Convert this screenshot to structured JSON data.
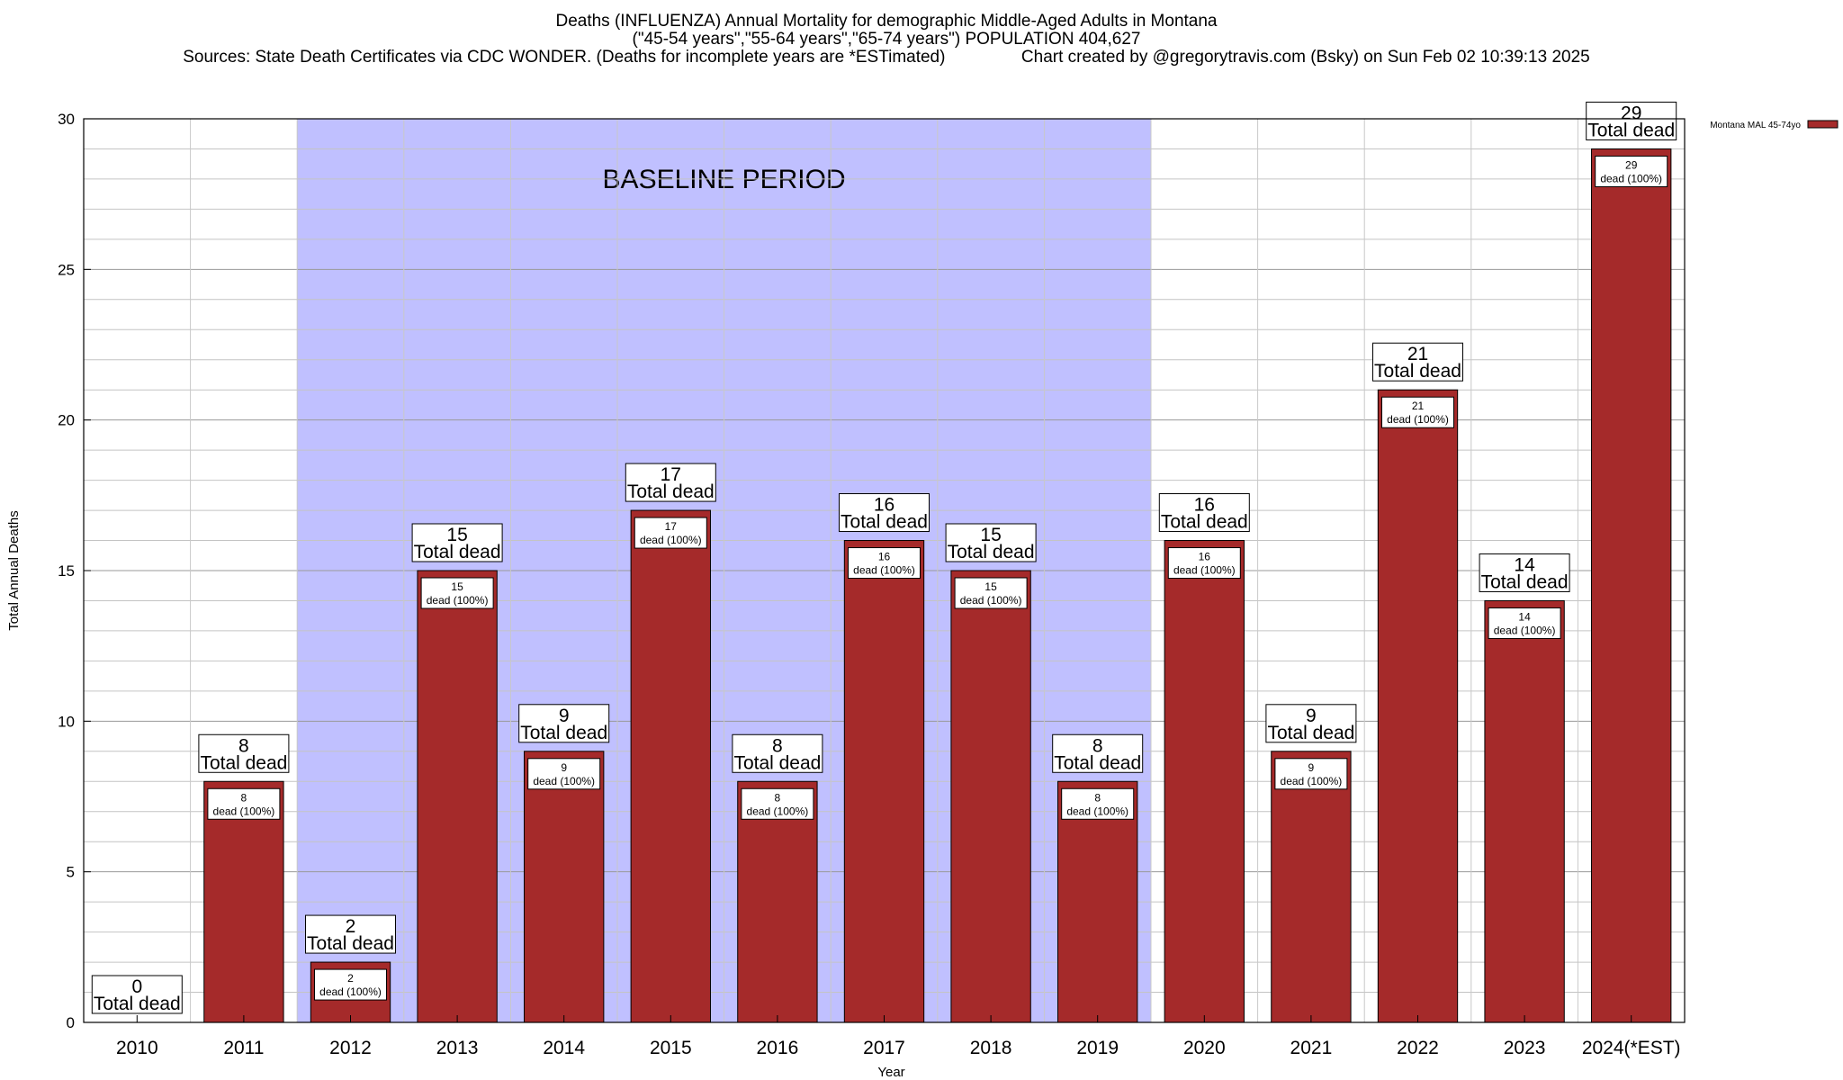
{
  "title": {
    "line1": "Deaths (INFLUENZA) Annual Mortality for demographic Middle-Aged Adults in Montana",
    "line2": "(\"45-54 years\",\"55-64 years\",\"65-74 years\") POPULATION 404,627",
    "line3": "Sources: State Death Certificates via CDC WONDER. (Deaths for incomplete years are *ESTimated)                Chart created by @gregorytravis.com (Bsky) on Sun Feb 02 10:39:13 2025"
  },
  "chart_data": {
    "type": "bar",
    "title": "Deaths (INFLUENZA) Annual Mortality for demographic Middle-Aged Adults in Montana",
    "xlabel": "Year",
    "ylabel": "Total Annual Deaths",
    "categories": [
      "2010",
      "2011",
      "2012",
      "2013",
      "2014",
      "2015",
      "2016",
      "2017",
      "2018",
      "2019",
      "2020",
      "2021",
      "2022",
      "2023",
      "2024(*EST)"
    ],
    "series": [
      {
        "name": "Montana MAL 45-74yo",
        "color": "#a52a2a",
        "values": [
          0,
          8,
          2,
          15,
          9,
          17,
          8,
          16,
          15,
          8,
          16,
          9,
          21,
          14,
          29
        ]
      }
    ],
    "ylim": [
      0,
      30
    ],
    "yticks": [
      0,
      5,
      10,
      15,
      20,
      25,
      30
    ],
    "grid": true,
    "legend_position": "top-right",
    "baseline_period": {
      "label": "BASELINE PERIOD",
      "from": "2012",
      "to": "2019",
      "color": "#c0c0ff"
    },
    "total_label": "Total dead",
    "bar_label_suffix": "dead (100%)"
  }
}
